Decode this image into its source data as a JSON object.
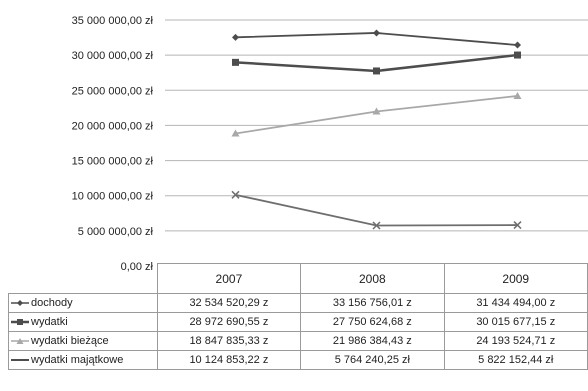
{
  "chart_data": {
    "type": "line",
    "categories": [
      "2007",
      "2008",
      "2009"
    ],
    "ylim": [
      0,
      35000000
    ],
    "yticks": [
      {
        "value": 35000000,
        "label": "35 000 000,00 zł"
      },
      {
        "value": 30000000,
        "label": "30 000 000,00 zł"
      },
      {
        "value": 25000000,
        "label": "25 000 000,00 zł"
      },
      {
        "value": 20000000,
        "label": "20 000 000,00 zł"
      },
      {
        "value": 15000000,
        "label": "15 000 000,00 zł"
      },
      {
        "value": 10000000,
        "label": "10 000 000,00 zł"
      },
      {
        "value": 5000000,
        "label": "5 000 000,00 zł"
      },
      {
        "value": 0,
        "label": "0,00 zł"
      }
    ],
    "grid": true,
    "legend": "data-table",
    "series": [
      {
        "name": "dochody",
        "marker": "diamond",
        "color": "#4d4d4d",
        "values": [
          32534520.29,
          33156756.01,
          31434494.0
        ],
        "labels": [
          "32 534 520,29 z",
          "33 156 756,01 z",
          "31 434 494,00 z"
        ]
      },
      {
        "name": "wydatki",
        "marker": "square",
        "color": "#4d4d4d",
        "values": [
          28972690.55,
          27750624.68,
          30015677.15
        ],
        "labels": [
          "28 972 690,55 z",
          "27 750 624,68 z",
          "30 015 677,15 z"
        ]
      },
      {
        "name": "wydatki bieżące",
        "marker": "triangle",
        "color": "#a8a8a8",
        "values": [
          18847835.33,
          21986384.43,
          24193524.71
        ],
        "labels": [
          "18 847 835,33 z",
          "21 986 384,43 z",
          "24 193 524,71 z"
        ]
      },
      {
        "name": "wydatki majątkowe",
        "marker": "x",
        "color": "#6e6e6e",
        "values": [
          10124853.22,
          5764240.25,
          5822152.44
        ],
        "labels": [
          "10 124 853,22 z",
          "5 764 240,25 zł",
          "5 822 152,44 zł"
        ]
      }
    ]
  }
}
